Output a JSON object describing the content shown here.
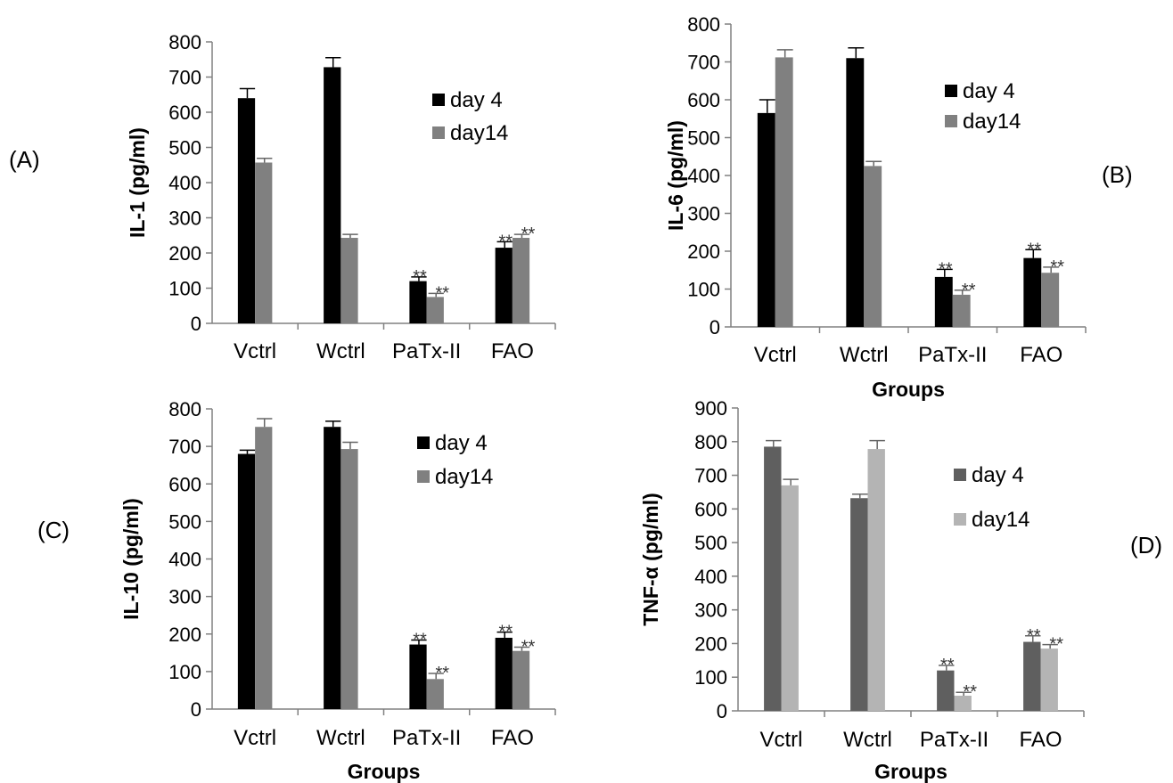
{
  "chart_data": [
    {
      "type": "bar",
      "panel_label": "(A)",
      "ylabel": "IL-1 (pg/ml)",
      "xlabel": "",
      "ylim": [
        0,
        800
      ],
      "yticks": [
        0,
        100,
        200,
        300,
        400,
        500,
        600,
        700,
        800
      ],
      "categories": [
        "Vctrl",
        "Wctrl",
        "PaTx-II",
        "FAO"
      ],
      "legend_position": "upper-right",
      "series": [
        {
          "name": "day 4",
          "color": "#000000",
          "values": [
            640,
            728,
            120,
            215
          ],
          "errors": [
            27,
            27,
            12,
            17
          ],
          "annotations": [
            "",
            "",
            "**",
            "**"
          ]
        },
        {
          "name": "day14",
          "color": "#808080",
          "values": [
            457,
            243,
            75,
            243
          ],
          "errors": [
            12,
            10,
            10,
            10
          ],
          "annotations": [
            "",
            "",
            "**",
            "**"
          ]
        }
      ]
    },
    {
      "type": "bar",
      "panel_label": "(B)",
      "ylabel": "IL-6 (pg/ml)",
      "xlabel": "Groups",
      "ylim": [
        0,
        800
      ],
      "yticks": [
        0,
        100,
        200,
        300,
        400,
        500,
        600,
        700,
        800
      ],
      "categories": [
        "Vctrl",
        "Wctrl",
        "PaTx-II",
        "FAO"
      ],
      "legend_position": "upper-right",
      "series": [
        {
          "name": "day 4",
          "color": "#000000",
          "values": [
            565,
            710,
            132,
            182
          ],
          "errors": [
            35,
            27,
            20,
            22
          ],
          "annotations": [
            "",
            "",
            "**",
            "**"
          ]
        },
        {
          "name": "day14",
          "color": "#808080",
          "values": [
            712,
            425,
            85,
            143
          ],
          "errors": [
            20,
            12,
            12,
            15
          ],
          "annotations": [
            "",
            "",
            "**",
            "**"
          ]
        }
      ]
    },
    {
      "type": "bar",
      "panel_label": "(C)",
      "ylabel": "IL-10 (pg/ml)",
      "xlabel": "Groups",
      "ylim": [
        0,
        800
      ],
      "yticks": [
        0,
        100,
        200,
        300,
        400,
        500,
        600,
        700,
        800
      ],
      "categories": [
        "Vctrl",
        "Wctrl",
        "PaTx-II",
        "FAO"
      ],
      "legend_position": "upper-right",
      "series": [
        {
          "name": "day 4",
          "color": "#000000",
          "values": [
            680,
            752,
            172,
            190
          ],
          "errors": [
            10,
            15,
            12,
            15
          ],
          "annotations": [
            "",
            "",
            "**",
            "**"
          ]
        },
        {
          "name": "day14",
          "color": "#808080",
          "values": [
            752,
            693,
            80,
            155
          ],
          "errors": [
            22,
            18,
            15,
            10
          ],
          "annotations": [
            "",
            "",
            "**",
            "**"
          ]
        }
      ]
    },
    {
      "type": "bar",
      "panel_label": "(D)",
      "ylabel": "TNF-α (pg/ml)",
      "xlabel": "Groups",
      "ylim": [
        0,
        900
      ],
      "yticks": [
        0,
        100,
        200,
        300,
        400,
        500,
        600,
        700,
        800,
        900
      ],
      "categories": [
        "Vctrl",
        "Wctrl",
        "PaTx-II",
        "FAO"
      ],
      "legend_position": "upper-right",
      "series": [
        {
          "name": "day 4",
          "color": "#5f5f5f",
          "values": [
            785,
            632,
            120,
            205
          ],
          "errors": [
            18,
            12,
            15,
            18
          ],
          "annotations": [
            "",
            "",
            "**",
            "**"
          ]
        },
        {
          "name": "day14",
          "color": "#b4b4b4",
          "values": [
            670,
            778,
            45,
            185
          ],
          "errors": [
            18,
            25,
            10,
            12
          ],
          "annotations": [
            "",
            "",
            "**",
            "**"
          ]
        }
      ]
    }
  ]
}
